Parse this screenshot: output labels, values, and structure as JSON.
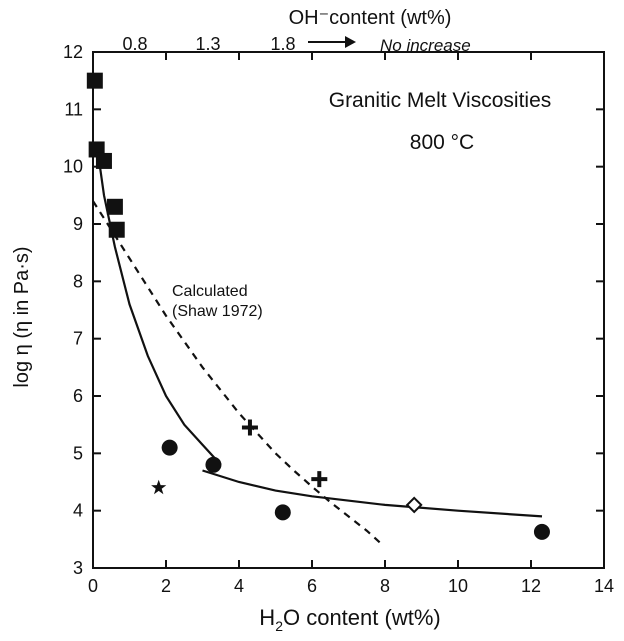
{
  "chart_data": {
    "type": "scatter",
    "title": "Granitic Melt Viscosities",
    "subtitle": "800 °C",
    "xlabel_main": "H",
    "xlabel_sub": "2",
    "xlabel_rest": "O  content (wt%)",
    "ylabel": "log η (η in Pa·s)",
    "top_axis_label": "OH⁻content (wt%)",
    "top_axis_ticks": [
      "0.8",
      "1.3",
      "1.8"
    ],
    "top_axis_note": "No increase",
    "xlim": [
      0,
      14
    ],
    "ylim": [
      3,
      12
    ],
    "x_ticks": [
      0,
      2,
      4,
      6,
      8,
      10,
      12,
      14
    ],
    "y_ticks": [
      3,
      4,
      5,
      6,
      7,
      8,
      9,
      10,
      11,
      12
    ],
    "annotation": {
      "line1": "Calculated",
      "line2": "(Shaw 1972)"
    },
    "series": [
      {
        "marker": "square",
        "points": [
          {
            "x": 0.05,
            "y": 11.5
          },
          {
            "x": 0.1,
            "y": 10.3
          },
          {
            "x": 0.3,
            "y": 10.1
          },
          {
            "x": 0.6,
            "y": 9.3
          },
          {
            "x": 0.65,
            "y": 8.9
          }
        ]
      },
      {
        "marker": "circle",
        "points": [
          {
            "x": 2.1,
            "y": 5.1
          },
          {
            "x": 3.3,
            "y": 4.8
          },
          {
            "x": 5.2,
            "y": 3.97
          },
          {
            "x": 12.3,
            "y": 3.63
          }
        ]
      },
      {
        "marker": "plus",
        "points": [
          {
            "x": 4.3,
            "y": 5.45
          },
          {
            "x": 6.2,
            "y": 4.55
          }
        ]
      },
      {
        "marker": "star",
        "points": [
          {
            "x": 1.8,
            "y": 4.4
          }
        ]
      },
      {
        "marker": "diamond",
        "points": [
          {
            "x": 8.8,
            "y": 4.1
          }
        ]
      }
    ],
    "fit_curve": [
      {
        "x": 0.1,
        "y": 10.4
      },
      {
        "x": 0.3,
        "y": 9.5
      },
      {
        "x": 0.6,
        "y": 8.6
      },
      {
        "x": 1.0,
        "y": 7.6
      },
      {
        "x": 1.5,
        "y": 6.7
      },
      {
        "x": 2.0,
        "y": 6.0
      },
      {
        "x": 2.5,
        "y": 5.5
      },
      {
        "x": 3.0,
        "y": 5.15
      },
      {
        "x": 3.5,
        "y": 4.8
      }
    ],
    "fit_line": [
      {
        "x": 3.0,
        "y": 4.7
      },
      {
        "x": 4.0,
        "y": 4.5
      },
      {
        "x": 5.0,
        "y": 4.35
      },
      {
        "x": 6.0,
        "y": 4.25
      },
      {
        "x": 8.0,
        "y": 4.1
      },
      {
        "x": 10.0,
        "y": 4.0
      },
      {
        "x": 12.3,
        "y": 3.9
      }
    ],
    "calculated_curve": [
      {
        "x": 0.0,
        "y": 9.4
      },
      {
        "x": 0.5,
        "y": 8.9
      },
      {
        "x": 1.0,
        "y": 8.4
      },
      {
        "x": 1.5,
        "y": 7.9
      },
      {
        "x": 2.0,
        "y": 7.4
      },
      {
        "x": 2.5,
        "y": 6.95
      },
      {
        "x": 3.0,
        "y": 6.5
      },
      {
        "x": 3.5,
        "y": 6.1
      },
      {
        "x": 4.0,
        "y": 5.7
      },
      {
        "x": 4.5,
        "y": 5.35
      },
      {
        "x": 5.0,
        "y": 5.0
      },
      {
        "x": 5.5,
        "y": 4.7
      },
      {
        "x": 6.0,
        "y": 4.42
      },
      {
        "x": 6.5,
        "y": 4.15
      },
      {
        "x": 7.0,
        "y": 3.9
      },
      {
        "x": 7.5,
        "y": 3.65
      },
      {
        "x": 7.9,
        "y": 3.42
      }
    ],
    "grid": false
  }
}
